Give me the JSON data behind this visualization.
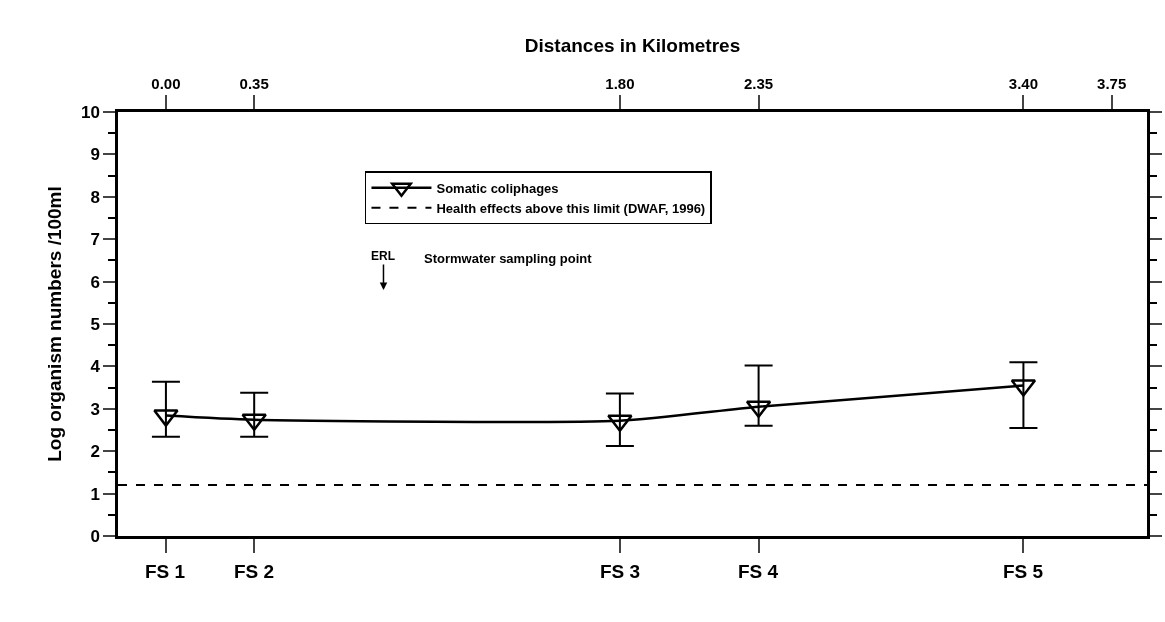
{
  "chart_data": {
    "type": "line",
    "xlabel": "Distances in Kilometres",
    "ylabel": "Log organism numbers /100ml",
    "x": [
      0,
      0.35,
      1.8,
      2.35,
      3.4
    ],
    "series": [
      {
        "name": "Somatic coliphages",
        "color": "#000000",
        "values": [
          2.84,
          2.74,
          2.72,
          3.05,
          3.55
        ],
        "errors": [
          [
            2.34,
            3.64
          ],
          [
            2.34,
            3.38
          ],
          [
            2.12,
            3.36
          ],
          [
            2.6,
            4.02
          ],
          [
            2.55,
            4.1
          ]
        ]
      }
    ],
    "xlim": [
      -0.19,
      3.89
    ],
    "xticks": [
      {
        "value": 0,
        "label": "0.00"
      },
      {
        "value": 0.35,
        "label": "0.35"
      },
      {
        "value": 1.8,
        "label": "1.80"
      },
      {
        "value": 2.35,
        "label": "2.35"
      },
      {
        "value": 3.4,
        "label": "3.40"
      },
      {
        "value": 3.75,
        "label": "3.75"
      }
    ],
    "ylim": [
      0,
      10
    ],
    "yticks": [
      0,
      1,
      2,
      3,
      4,
      5,
      6,
      7,
      8,
      9,
      10
    ],
    "ref_lines": [
      {
        "axis": "y",
        "value": 1.2,
        "label": "Health effects above this limit (DWAF, 1996)",
        "color": "#000000",
        "line_style": "dashed"
      }
    ],
    "annotations": [
      "ERL",
      "Stormwater sampling point",
      {
        "text": "FS 1",
        "x": 0
      },
      {
        "text": "FS 2",
        "x": 0.35
      },
      {
        "text": "FS 3",
        "x": 1.8
      },
      {
        "text": "FS 4",
        "x": 2.35
      },
      {
        "text": "FS 5",
        "x": 3.4
      }
    ],
    "marker": "triangle-down",
    "line_style": "solid",
    "legend": "top"
  }
}
